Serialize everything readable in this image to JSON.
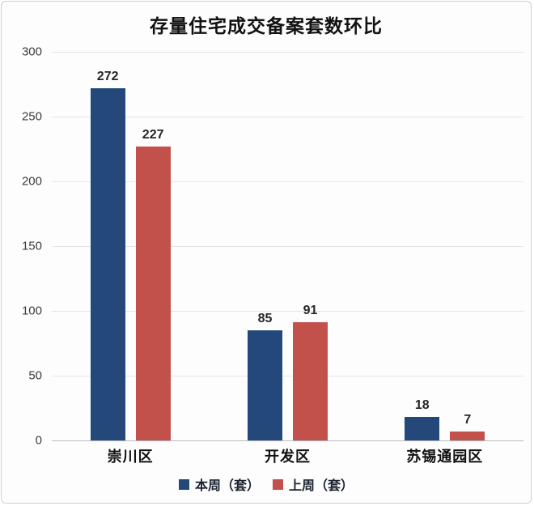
{
  "chart_data": {
    "type": "bar",
    "title": "存量住宅成交备案套数环比",
    "categories": [
      "崇川区",
      "开发区",
      "苏锡通园区"
    ],
    "series": [
      {
        "name": "本周（套）",
        "color": "#234879",
        "values": [
          272,
          85,
          18
        ]
      },
      {
        "name": "上周（套）",
        "color": "#C2504B",
        "values": [
          227,
          91,
          7
        ]
      }
    ],
    "xlabel": "",
    "ylabel": "",
    "ylim": [
      0,
      300
    ],
    "yticks": [
      0,
      50,
      100,
      150,
      200,
      250,
      300
    ],
    "grid": true,
    "legend_position": "bottom"
  }
}
